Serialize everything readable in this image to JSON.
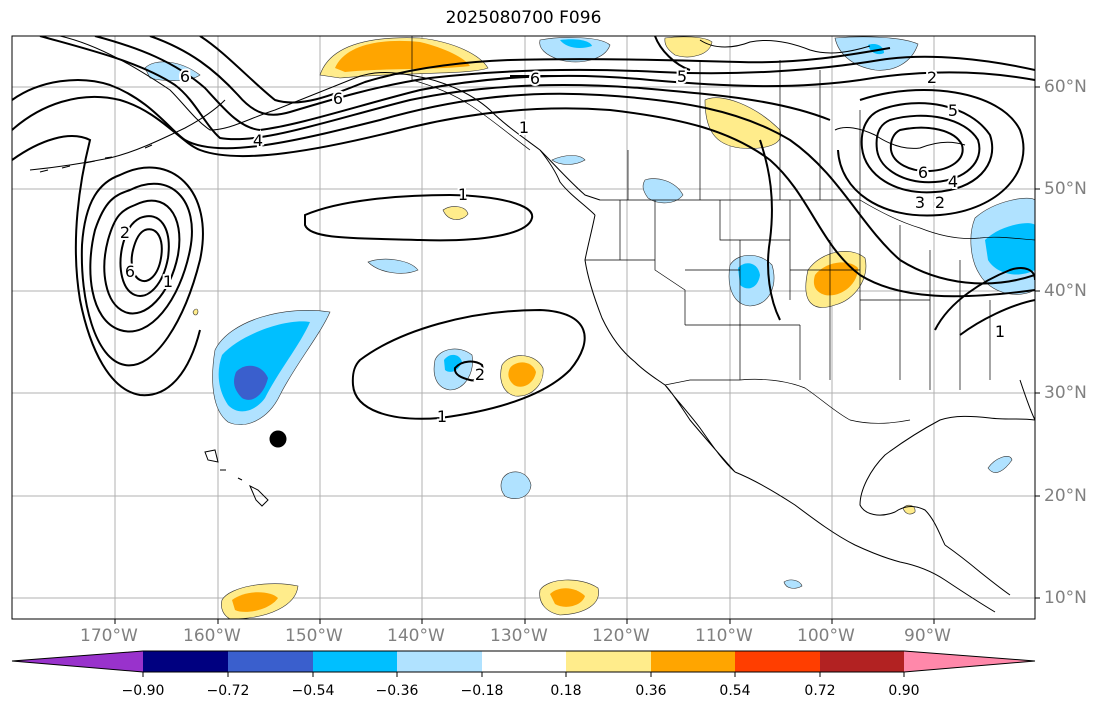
{
  "title": "2025080700 F096",
  "latitude_labels": [
    "60°N",
    "50°N",
    "40°N",
    "30°N",
    "20°N",
    "10°N"
  ],
  "longitude_labels": [
    "170°W",
    "160°W",
    "150°W",
    "140°W",
    "130°W",
    "120°W",
    "110°W",
    "100°W",
    "90°W"
  ],
  "contour_labels": [
    "6",
    "6",
    "5",
    "2",
    "5",
    "6",
    "4",
    "3",
    "2",
    "1",
    "6",
    "4",
    "1",
    "1",
    "2",
    "6",
    "2",
    "1",
    "1"
  ],
  "colorbar": {
    "tick_labels": [
      "−0.90",
      "−0.72",
      "−0.54",
      "−0.36",
      "−0.18",
      "0.18",
      "0.36",
      "0.54",
      "0.72",
      "0.90"
    ],
    "colors": [
      "#9932cc",
      "#000080",
      "#3a5fcd",
      "#00bfff",
      "#b0e2ff",
      "#ffffff",
      "#ffec8b",
      "#ffa500",
      "#ff3e00",
      "#b22222",
      "#ff88aa"
    ]
  },
  "fill_colors": {
    "neg_weak": "#b0e2ff",
    "neg_mid": "#00bfff",
    "neg_strong": "#3a5fcd",
    "pos_weak": "#ffec8b",
    "pos_mid": "#ffa500"
  },
  "marker": "black-dot"
}
